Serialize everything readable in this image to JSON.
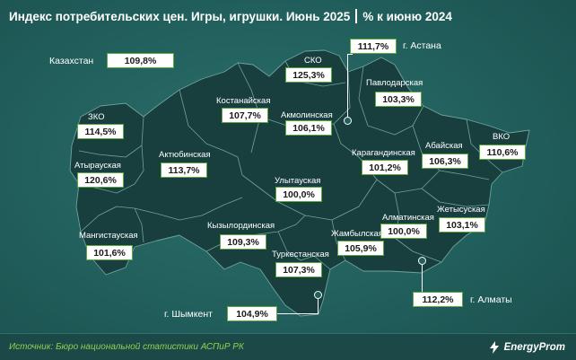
{
  "header": {
    "title": "Индекс потребительских цен. Игры, игрушки. Июнь 2025",
    "subtitle": "% к июню 2024"
  },
  "summary": {
    "label": "Казахстан",
    "value": "109,8%"
  },
  "regions": [
    {
      "key": "sko",
      "name": "СКО",
      "value": "125,3%"
    },
    {
      "key": "pavlodar",
      "name": "Павлодарская",
      "value": "103,3%"
    },
    {
      "key": "kostanay",
      "name": "Костанайская",
      "value": "107,7%"
    },
    {
      "key": "akmola",
      "name": "Акмолинская",
      "value": "106,1%"
    },
    {
      "key": "zko",
      "name": "ЗКО",
      "value": "114,5%"
    },
    {
      "key": "aktobe",
      "name": "Актюбинская",
      "value": "113,7%"
    },
    {
      "key": "atyrau",
      "name": "Атырауская",
      "value": "120,6%"
    },
    {
      "key": "vko",
      "name": "ВКО",
      "value": "110,6%"
    },
    {
      "key": "abai",
      "name": "Абайская",
      "value": "106,3%"
    },
    {
      "key": "karaganda",
      "name": "Карагандинская",
      "value": "101,2%"
    },
    {
      "key": "ulytau",
      "name": "Улытауская",
      "value": "100,0%"
    },
    {
      "key": "zhetysu",
      "name": "Жетысуская",
      "value": "103,1%"
    },
    {
      "key": "almaty_reg",
      "name": "Алматинская",
      "value": "100,0%"
    },
    {
      "key": "kyzylorda",
      "name": "Кызылординская",
      "value": "109,3%"
    },
    {
      "key": "mangystau",
      "name": "Мангистауская",
      "value": "101,6%"
    },
    {
      "key": "zhambyl",
      "name": "Жамбылская",
      "value": "105,9%"
    },
    {
      "key": "turkestan",
      "name": "Туркестанская",
      "value": "107,3%"
    }
  ],
  "cities": [
    {
      "key": "astana",
      "name": "г. Астана",
      "value": "111,7%"
    },
    {
      "key": "almaty",
      "name": "г. Алматы",
      "value": "112,2%"
    },
    {
      "key": "shymkent",
      "name": "г. Шымкент",
      "value": "104,9%"
    }
  ],
  "footer": {
    "source": "Источник: Бюро национальной статистики АСПиР РК",
    "brand": "EnergyProm"
  },
  "colors": {
    "background": "#215f5c",
    "region_fill": "#183f3e",
    "border": "#6fa29e",
    "value_border": "#5aa83c",
    "source_text": "#8fd14f"
  }
}
